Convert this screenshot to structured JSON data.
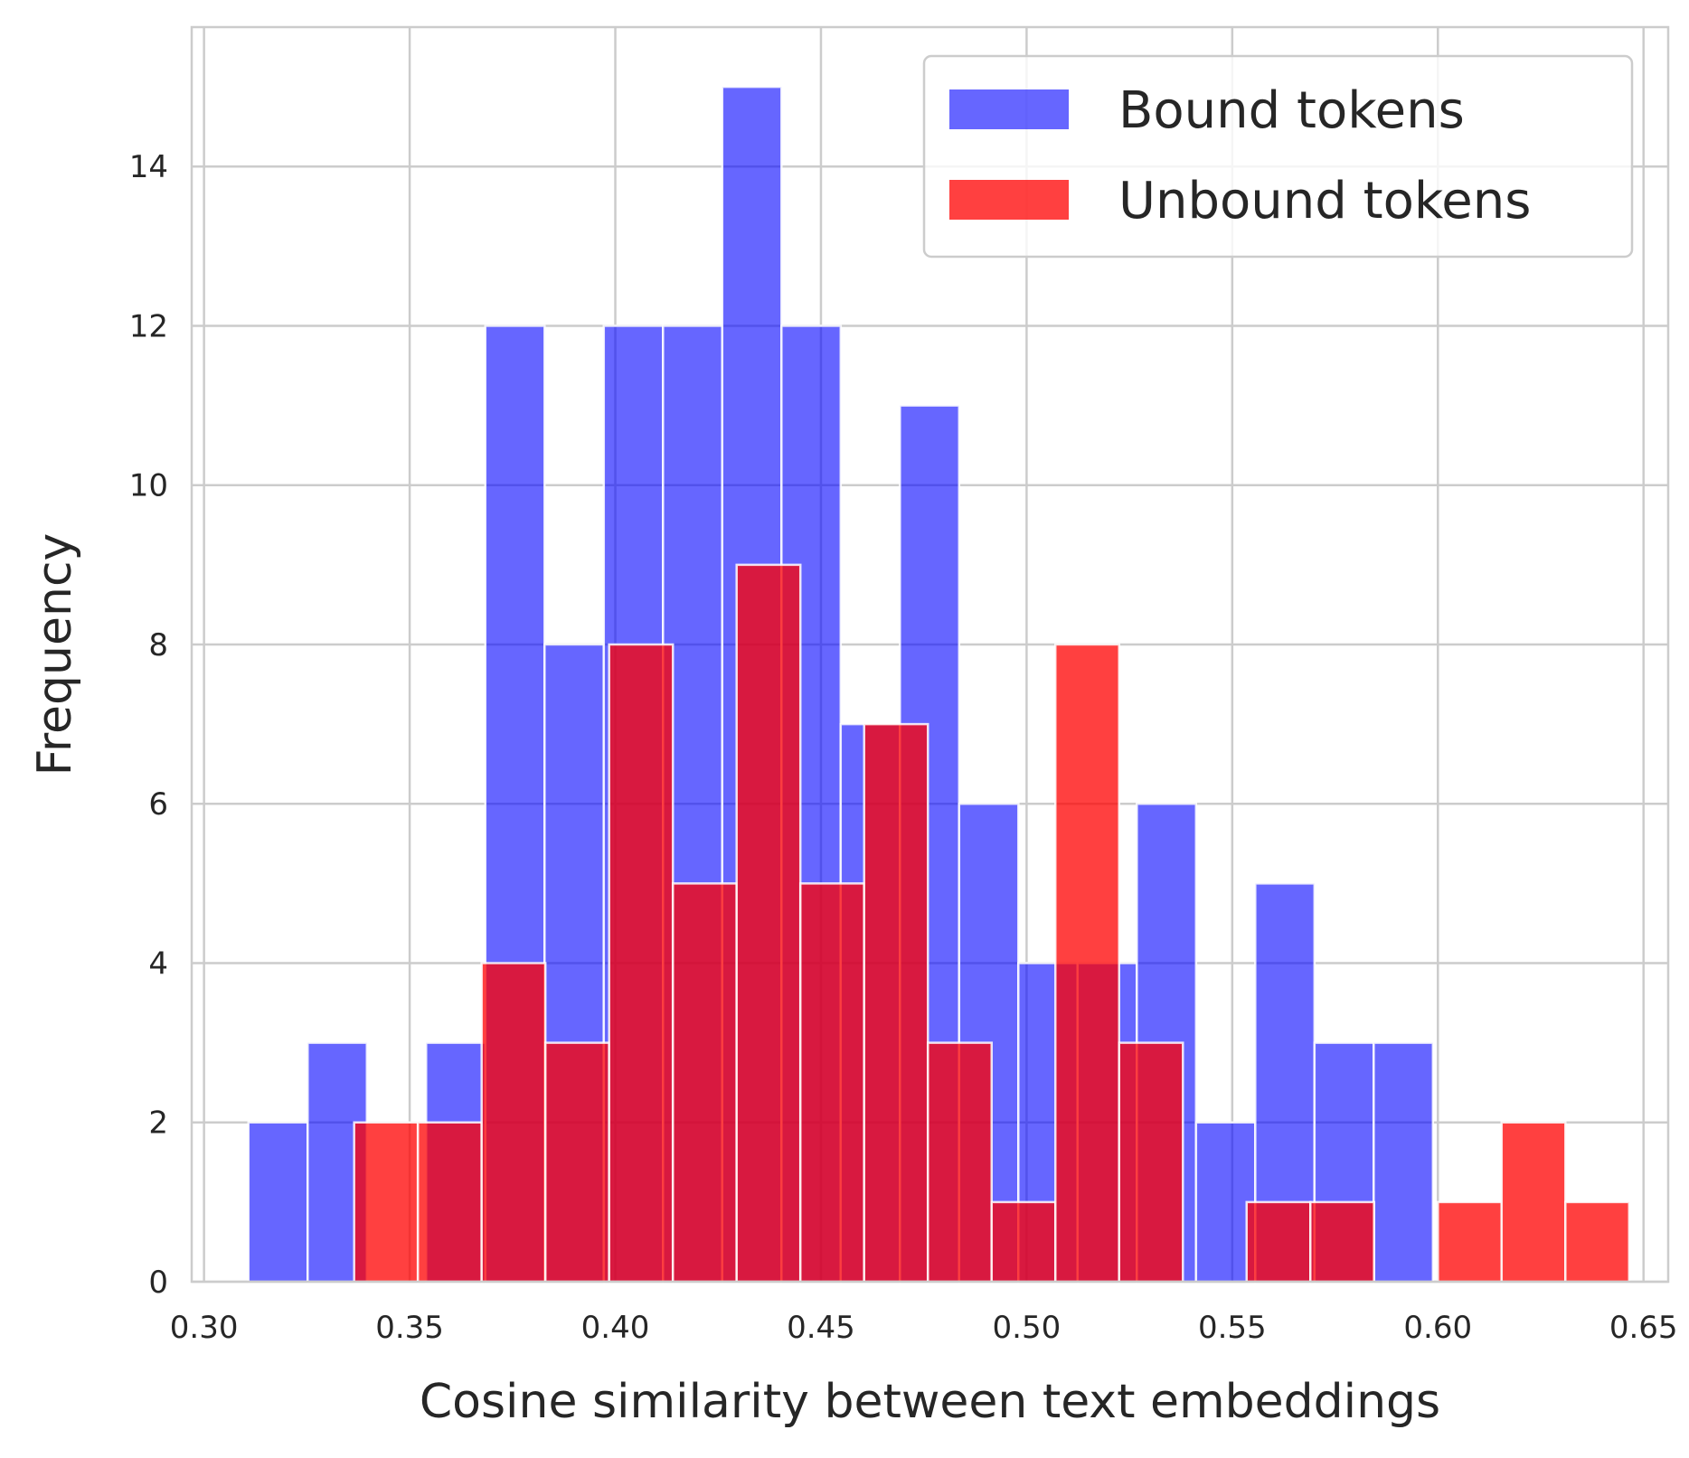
{
  "chart_data": {
    "type": "bar",
    "title": "",
    "xlabel": "Cosine similarity between text embeddings",
    "ylabel": "Frequency",
    "xlim": [
      0.297,
      0.656
    ],
    "ylim": [
      0,
      15.75
    ],
    "xticks": [
      0.3,
      0.35,
      0.4,
      0.45,
      0.5,
      0.55,
      0.6,
      0.65
    ],
    "xtick_labels": [
      "0.30",
      "0.35",
      "0.40",
      "0.45",
      "0.50",
      "0.55",
      "0.60",
      "0.65"
    ],
    "yticks": [
      0,
      2,
      4,
      6,
      8,
      10,
      12,
      14
    ],
    "ytick_labels": [
      "0",
      "2",
      "4",
      "6",
      "8",
      "10",
      "12",
      "14"
    ],
    "grid": true,
    "legend_position": "top-right",
    "series": [
      {
        "name": "Bound tokens",
        "color": "#0000ff",
        "opacity": 0.6,
        "bins": [
          {
            "x0": 0.3108,
            "x1": 0.3252,
            "value": 2
          },
          {
            "x0": 0.3252,
            "x1": 0.3396,
            "value": 3
          },
          {
            "x0": 0.3396,
            "x1": 0.354,
            "value": 0
          },
          {
            "x0": 0.354,
            "x1": 0.3684,
            "value": 3
          },
          {
            "x0": 0.3684,
            "x1": 0.3828,
            "value": 12
          },
          {
            "x0": 0.3828,
            "x1": 0.3972,
            "value": 8
          },
          {
            "x0": 0.3972,
            "x1": 0.4116,
            "value": 12
          },
          {
            "x0": 0.4116,
            "x1": 0.426,
            "value": 12
          },
          {
            "x0": 0.426,
            "x1": 0.4404,
            "value": 15
          },
          {
            "x0": 0.4404,
            "x1": 0.4548,
            "value": 12
          },
          {
            "x0": 0.4548,
            "x1": 0.4692,
            "value": 7
          },
          {
            "x0": 0.4692,
            "x1": 0.4836,
            "value": 11
          },
          {
            "x0": 0.4836,
            "x1": 0.498,
            "value": 6
          },
          {
            "x0": 0.498,
            "x1": 0.5124,
            "value": 4
          },
          {
            "x0": 0.5124,
            "x1": 0.5268,
            "value": 4
          },
          {
            "x0": 0.5268,
            "x1": 0.5412,
            "value": 6
          },
          {
            "x0": 0.5412,
            "x1": 0.5556,
            "value": 2
          },
          {
            "x0": 0.5556,
            "x1": 0.57,
            "value": 5
          },
          {
            "x0": 0.57,
            "x1": 0.5844,
            "value": 3
          },
          {
            "x0": 0.5844,
            "x1": 0.5988,
            "value": 3
          }
        ]
      },
      {
        "name": "Unbound tokens",
        "color": "#ff0000",
        "opacity": 0.75,
        "bins": [
          {
            "x0": 0.3365,
            "x1": 0.352,
            "value": 2
          },
          {
            "x0": 0.352,
            "x1": 0.3675,
            "value": 2
          },
          {
            "x0": 0.3675,
            "x1": 0.383,
            "value": 4
          },
          {
            "x0": 0.383,
            "x1": 0.3985,
            "value": 3
          },
          {
            "x0": 0.3985,
            "x1": 0.414,
            "value": 8
          },
          {
            "x0": 0.414,
            "x1": 0.4295,
            "value": 5
          },
          {
            "x0": 0.4295,
            "x1": 0.445,
            "value": 9
          },
          {
            "x0": 0.445,
            "x1": 0.4605,
            "value": 5
          },
          {
            "x0": 0.4605,
            "x1": 0.476,
            "value": 7
          },
          {
            "x0": 0.476,
            "x1": 0.4915,
            "value": 3
          },
          {
            "x0": 0.4915,
            "x1": 0.507,
            "value": 1
          },
          {
            "x0": 0.507,
            "x1": 0.5225,
            "value": 8
          },
          {
            "x0": 0.5225,
            "x1": 0.538,
            "value": 3
          },
          {
            "x0": 0.538,
            "x1": 0.5535,
            "value": 0
          },
          {
            "x0": 0.5535,
            "x1": 0.569,
            "value": 1
          },
          {
            "x0": 0.569,
            "x1": 0.5845,
            "value": 1
          },
          {
            "x0": 0.5845,
            "x1": 0.6,
            "value": 0
          },
          {
            "x0": 0.6,
            "x1": 0.6155,
            "value": 1
          },
          {
            "x0": 0.6155,
            "x1": 0.631,
            "value": 2
          },
          {
            "x0": 0.631,
            "x1": 0.6465,
            "value": 1
          }
        ]
      }
    ]
  }
}
